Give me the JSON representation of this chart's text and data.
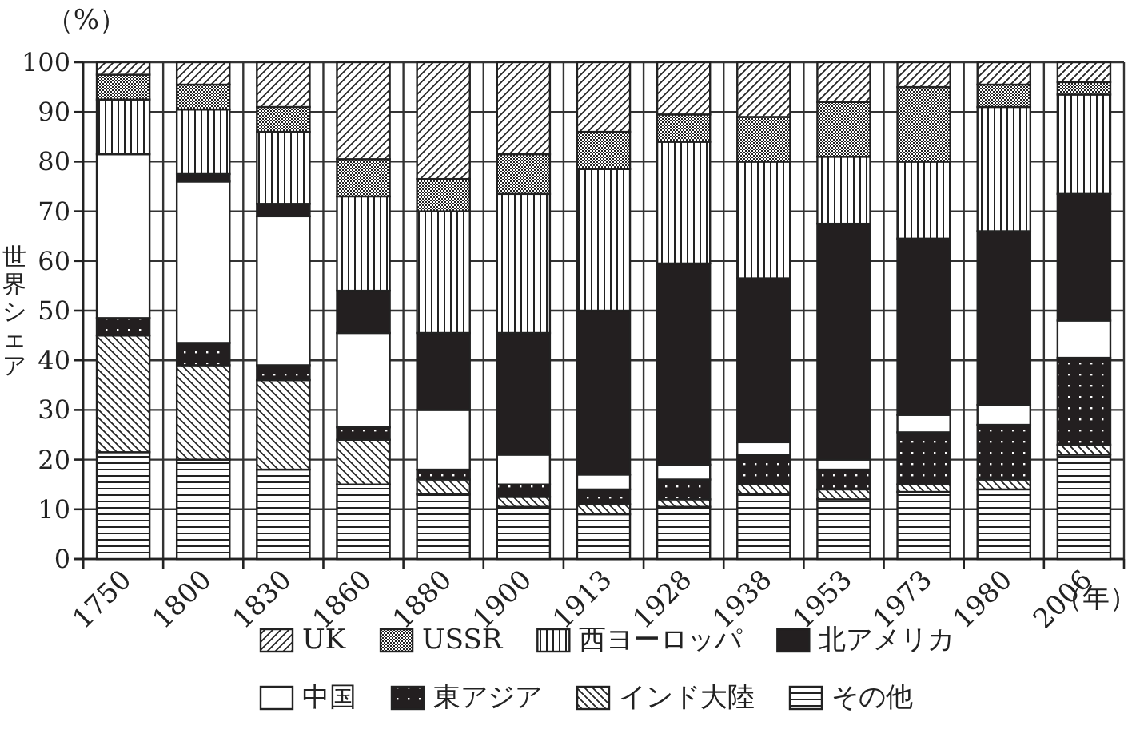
{
  "chart_data": {
    "type": "bar",
    "stacked": true,
    "ylabel": "世界シェア",
    "annotations": [
      "（%）",
      "（年）"
    ],
    "categories": [
      "1750",
      "1800",
      "1830",
      "1860",
      "1880",
      "1900",
      "1913",
      "1928",
      "1938",
      "1953",
      "1973",
      "1980",
      "2006"
    ],
    "ylim": [
      0,
      100
    ],
    "yticks": [
      0,
      10,
      20,
      30,
      40,
      50,
      60,
      70,
      80,
      90,
      100
    ],
    "grid": true,
    "legend": "bottom",
    "series": [
      {
        "name": "その他",
        "color": "#222222",
        "values": [
          21.5,
          20,
          18,
          15,
          13,
          10.5,
          9,
          10.5,
          13,
          12,
          13.5,
          14,
          21
        ]
      },
      {
        "name": "インド大陸",
        "color": "#222222",
        "values": [
          23.5,
          19,
          18,
          9,
          3,
          2,
          2,
          1.5,
          2,
          2,
          1.5,
          2,
          2
        ]
      },
      {
        "name": "東アジア",
        "color": "#231f20",
        "values": [
          3.5,
          4.5,
          3,
          2.5,
          2,
          2.5,
          3,
          4,
          6,
          4,
          10.5,
          11,
          17.5
        ]
      },
      {
        "name": "中国",
        "color": "#ffffff",
        "values": [
          33,
          32.5,
          30,
          19,
          12,
          6,
          3,
          3,
          2.5,
          2,
          3.5,
          4,
          7.5
        ]
      },
      {
        "name": "北アメリカ",
        "color": "#231f20",
        "values": [
          0,
          1.5,
          2.5,
          8.5,
          15.5,
          24.5,
          33,
          40.5,
          33,
          47.5,
          35.5,
          35,
          25.5
        ]
      },
      {
        "name": "西ヨーロッパ",
        "color": "#222222",
        "values": [
          11,
          13,
          14.5,
          19,
          24.5,
          28,
          28.5,
          24.5,
          23.5,
          13.5,
          15.5,
          25,
          20
        ]
      },
      {
        "name": "USSR",
        "color": "#222222",
        "values": [
          5,
          5,
          5,
          7.5,
          6.5,
          8,
          7.5,
          5.5,
          9,
          11,
          15,
          4.5,
          2.5
        ]
      },
      {
        "name": "UK",
        "color": "#222222",
        "values": [
          2.5,
          4.5,
          9,
          19.5,
          23.5,
          18.5,
          14,
          10.5,
          11,
          8,
          5,
          4.5,
          4
        ]
      }
    ]
  }
}
